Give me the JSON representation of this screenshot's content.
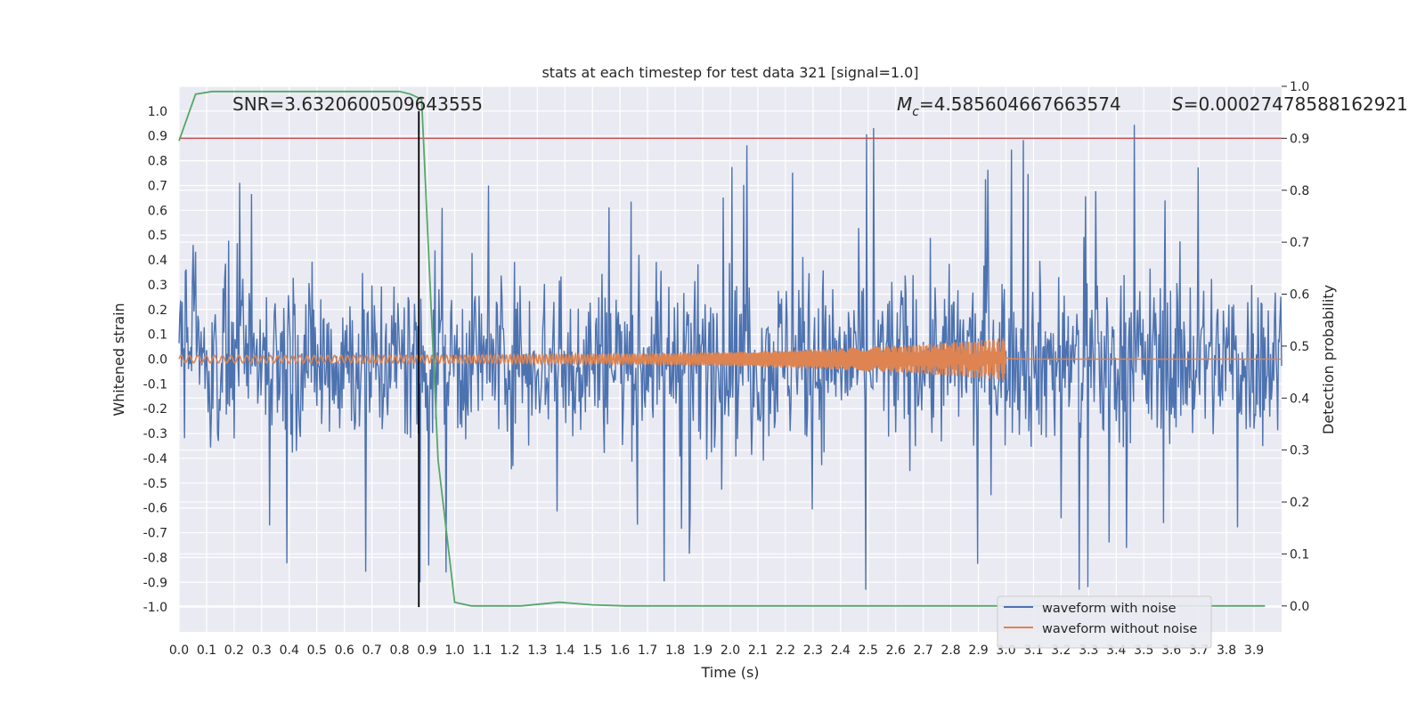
{
  "chart_data": {
    "type": "line",
    "title": "stats at each timestep for test data 321 [signal=1.0]",
    "xlabel": "Time (s)",
    "ylabel": "Whitened strain",
    "y2label": "Detection probability",
    "xlim": [
      0.0,
      4.0
    ],
    "ylim": [
      -1.1,
      1.1
    ],
    "y2lim": [
      -0.05,
      1.0
    ],
    "x_ticks": [
      "0.0",
      "0.1",
      "0.2",
      "0.3",
      "0.4",
      "0.5",
      "0.6",
      "0.7",
      "0.8",
      "0.9",
      "1.0",
      "1.1",
      "1.2",
      "1.3",
      "1.4",
      "1.5",
      "1.6",
      "1.7",
      "1.8",
      "1.9",
      "2.0",
      "2.1",
      "2.2",
      "2.3",
      "2.4",
      "2.5",
      "2.6",
      "2.7",
      "2.8",
      "2.9",
      "3.0",
      "3.1",
      "3.2",
      "3.3",
      "3.4",
      "3.5",
      "3.6",
      "3.7",
      "3.8",
      "3.9"
    ],
    "y_ticks": [
      "1.0",
      "0.9",
      "0.8",
      "0.7",
      "0.6",
      "0.5",
      "0.4",
      "0.3",
      "0.2",
      "0.1",
      "0.0",
      "-0.1",
      "-0.2",
      "-0.3",
      "-0.4",
      "-0.5",
      "-0.6",
      "-0.7",
      "-0.8",
      "-0.9",
      "-1.0"
    ],
    "y2_ticks": [
      "1.0",
      "0.9",
      "0.8",
      "0.7",
      "0.6",
      "0.5",
      "0.4",
      "0.3",
      "0.2",
      "0.1",
      "0.0"
    ],
    "annotations": {
      "snr": "SNR=3.6320600509643555",
      "mc_symbol": "M",
      "mc_sub": "c",
      "mc_value": "=4.585604667663574",
      "s_symbol": "S",
      "s_value": "=0.00027478588162921"
    },
    "legend": {
      "placement": "lower-right",
      "entries": [
        "waveform with noise",
        "waveform without noise"
      ]
    },
    "threshold": {
      "axis": "y2",
      "value": 0.9,
      "color": "#c44e52"
    },
    "vertical_marker": {
      "x": 0.87,
      "color": "#000000"
    },
    "series": [
      {
        "name": "waveform with noise",
        "axis": "y",
        "color": "#4c72b0",
        "description_stats": {
          "start": 0.0,
          "end": 4.0,
          "typical_amplitude": 0.35,
          "peak_max": 0.96,
          "peak_min": -0.93
        }
      },
      {
        "name": "waveform without noise",
        "axis": "y",
        "color": "#dd8452",
        "chirp": {
          "start": 0.0,
          "merger": 3.0,
          "start_amplitude": 0.015,
          "merger_amplitude": 0.085
        }
      },
      {
        "name": "detection probability",
        "axis": "y2",
        "color": "#55a868",
        "x": [
          0.0,
          0.06,
          0.12,
          0.2,
          0.3,
          0.4,
          0.5,
          0.6,
          0.7,
          0.8,
          0.84,
          0.88,
          0.94,
          1.0,
          1.06,
          1.12,
          1.24,
          1.38,
          1.5,
          1.62,
          3.0,
          3.94
        ],
        "values": [
          0.895,
          0.985,
          0.99,
          0.99,
          0.99,
          0.99,
          0.99,
          0.99,
          0.99,
          0.99,
          0.985,
          0.975,
          0.28,
          0.007,
          0.0,
          0.0,
          0.0,
          0.007,
          0.002,
          0.0,
          0.0,
          0.0
        ]
      }
    ]
  }
}
